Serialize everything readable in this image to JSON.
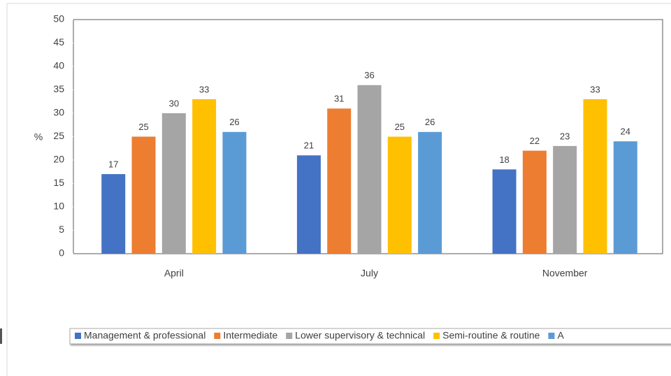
{
  "chart_data": {
    "type": "bar",
    "y_label": "%",
    "categories": [
      "April",
      "July",
      "November"
    ],
    "series": [
      {
        "name": "Management & professional",
        "color": "#4472c4",
        "values": [
          17,
          21,
          18
        ]
      },
      {
        "name": "Intermediate",
        "color": "#ed7d31",
        "values": [
          25,
          31,
          22
        ]
      },
      {
        "name": "Lower supervisory & technical",
        "color": "#a5a5a5",
        "values": [
          30,
          36,
          23
        ]
      },
      {
        "name": "Semi-routine & routine",
        "color": "#ffc000",
        "values": [
          33,
          25,
          33
        ]
      },
      {
        "name": "A",
        "color": "#5b9bd5",
        "values": [
          26,
          26,
          24
        ]
      }
    ],
    "ylim": [
      0,
      50
    ],
    "yticks": [
      0,
      5,
      10,
      15,
      20,
      25,
      30,
      35,
      40,
      45,
      50
    ],
    "legend": "bottom"
  }
}
